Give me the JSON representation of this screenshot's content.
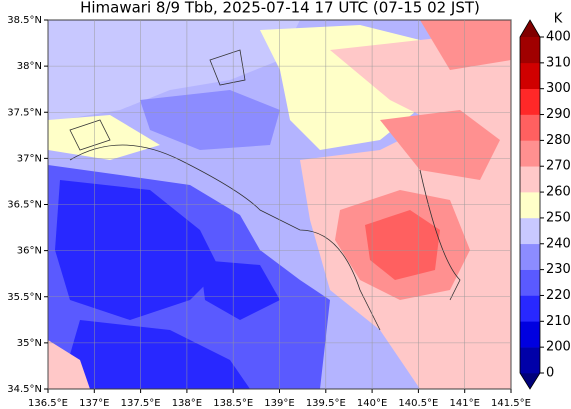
{
  "title": "Himawari 8/9 Tbb, 2025-07-14 17 UTC (07-15 02 JST)",
  "map": {
    "xlim": [
      136.5,
      141.5
    ],
    "ylim": [
      34.5,
      38.5
    ],
    "xticks": [
      {
        "value": 136.5,
        "label": "136.5°E"
      },
      {
        "value": 137,
        "label": "137°E"
      },
      {
        "value": 137.5,
        "label": "137.5°E"
      },
      {
        "value": 138,
        "label": "138°E"
      },
      {
        "value": 138.5,
        "label": "138.5°E"
      },
      {
        "value": 139,
        "label": "139°E"
      },
      {
        "value": 139.5,
        "label": "139.5°E"
      },
      {
        "value": 140,
        "label": "140°E"
      },
      {
        "value": 140.5,
        "label": "140.5°E"
      },
      {
        "value": 141,
        "label": "141°E"
      },
      {
        "value": 141.5,
        "label": "141.5°E"
      }
    ],
    "yticks": [
      {
        "value": 34.5,
        "label": "34.5°N"
      },
      {
        "value": 35,
        "label": "35°N"
      },
      {
        "value": 35.5,
        "label": "35.5°N"
      },
      {
        "value": 36,
        "label": "36°N"
      },
      {
        "value": 36.5,
        "label": "36.5°N"
      },
      {
        "value": 37,
        "label": "37°N"
      },
      {
        "value": 37.5,
        "label": "37.5°N"
      },
      {
        "value": 38,
        "label": "38°N"
      },
      {
        "value": 38.5,
        "label": "38.5°N"
      }
    ],
    "grid": true
  },
  "colorbar": {
    "unit": "K",
    "ticks": [
      0,
      200,
      210,
      220,
      230,
      240,
      250,
      260,
      270,
      280,
      290,
      300,
      310,
      400
    ],
    "colors": [
      "#00007a",
      "#0000a8",
      "#0000e0",
      "#2828ff",
      "#5a5aff",
      "#8c8cff",
      "#c8c8ff",
      "#ffffc8",
      "#ffc8c8",
      "#ff9090",
      "#ff6060",
      "#ff2828",
      "#d00000",
      "#a00000",
      "#800000"
    ]
  }
}
